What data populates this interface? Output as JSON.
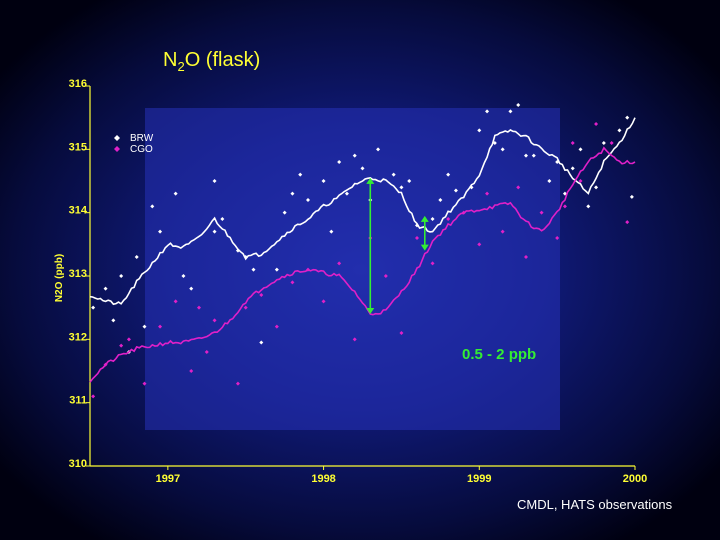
{
  "chart_data": {
    "type": "scatter",
    "title_main": "N",
    "title_sub": "2",
    "title_rest": "O (flask)",
    "ylabel": "N2O (ppb)",
    "xlabel": "",
    "xlim": [
      1996.5,
      2000.0
    ],
    "ylim": [
      310,
      316
    ],
    "xticks": [
      1997,
      1998,
      1999,
      2000
    ],
    "xtick_labels": [
      "1997",
      "1998",
      "1999",
      "2000"
    ],
    "yticks": [
      310,
      311,
      312,
      313,
      314,
      315,
      316
    ],
    "ytick_labels": [
      "310",
      "311",
      "312",
      "313",
      "314",
      "315",
      "316"
    ],
    "grid": false,
    "legend_position": "top-left",
    "annotation": "0.5 - 2 ppb",
    "source_note": "CMDL, HATS observations",
    "colors": {
      "background": "#101a78",
      "axis": "#ffff33",
      "BRW": "#ffffff",
      "CGO": "#e020c8",
      "annotation": "#33ee33"
    },
    "series": [
      {
        "name": "BRW",
        "smooth": {
          "x": [
            1996.5,
            1996.6,
            1996.7,
            1996.8,
            1996.9,
            1997.0,
            1997.1,
            1997.2,
            1997.3,
            1997.4,
            1997.5,
            1997.6,
            1997.7,
            1997.8,
            1997.9,
            1998.0,
            1998.1,
            1998.2,
            1998.3,
            1998.4,
            1998.5,
            1998.6,
            1998.7,
            1998.8,
            1998.9,
            1999.0,
            1999.1,
            1999.2,
            1999.3,
            1999.4,
            1999.5,
            1999.6,
            1999.7,
            1999.8,
            1999.9,
            2000.0
          ],
          "y": [
            312.7,
            312.6,
            312.55,
            312.9,
            313.2,
            313.5,
            313.45,
            313.6,
            313.9,
            313.6,
            313.3,
            313.35,
            313.55,
            313.75,
            313.9,
            314.1,
            314.25,
            314.45,
            314.55,
            314.5,
            314.3,
            313.8,
            313.7,
            314.0,
            314.25,
            314.6,
            315.2,
            315.3,
            315.2,
            315.0,
            314.85,
            314.55,
            314.3,
            314.8,
            315.1,
            315.5
          ]
        },
        "points": {
          "x": [
            1996.52,
            1996.6,
            1996.65,
            1996.7,
            1996.75,
            1996.8,
            1996.85,
            1996.9,
            1996.95,
            1997.05,
            1997.1,
            1997.15,
            1997.3,
            1997.3,
            1997.35,
            1997.45,
            1997.5,
            1997.55,
            1997.6,
            1997.7,
            1997.75,
            1997.8,
            1997.85,
            1997.9,
            1998.0,
            1998.05,
            1998.1,
            1998.15,
            1998.2,
            1998.25,
            1998.3,
            1998.35,
            1998.45,
            1998.5,
            1998.55,
            1998.6,
            1998.7,
            1998.75,
            1998.8,
            1998.85,
            1998.95,
            1999.0,
            1999.05,
            1999.1,
            1999.15,
            1999.2,
            1999.25,
            1999.3,
            1999.35,
            1999.45,
            1999.5,
            1999.55,
            1999.6,
            1999.65,
            1999.7,
            1999.75,
            1999.8,
            1999.9,
            1999.95,
            1999.98
          ],
          "y": [
            312.5,
            312.8,
            312.3,
            313.0,
            311.8,
            313.3,
            312.2,
            314.1,
            313.7,
            314.3,
            313.0,
            312.8,
            313.7,
            314.5,
            313.9,
            313.4,
            313.3,
            313.1,
            311.95,
            313.1,
            314.0,
            314.3,
            314.6,
            314.2,
            314.5,
            313.7,
            314.8,
            314.3,
            314.9,
            314.7,
            314.2,
            315.0,
            314.6,
            314.4,
            314.5,
            313.8,
            313.9,
            314.2,
            314.6,
            314.35,
            314.4,
            315.3,
            315.6,
            315.1,
            315.0,
            315.6,
            315.7,
            314.9,
            314.9,
            314.5,
            314.8,
            314.3,
            314.7,
            315.0,
            314.1,
            314.4,
            315.1,
            315.3,
            315.5,
            314.25
          ]
        }
      },
      {
        "name": "CGO",
        "smooth": {
          "x": [
            1996.5,
            1996.6,
            1996.7,
            1996.8,
            1996.9,
            1997.0,
            1997.1,
            1997.2,
            1997.3,
            1997.4,
            1997.5,
            1997.6,
            1997.7,
            1997.8,
            1997.9,
            1998.0,
            1998.1,
            1998.2,
            1998.3,
            1998.4,
            1998.5,
            1998.6,
            1998.7,
            1998.8,
            1998.9,
            1999.0,
            1999.1,
            1999.2,
            1999.3,
            1999.4,
            1999.5,
            1999.6,
            1999.7,
            1999.8,
            1999.9,
            2000.0
          ],
          "y": [
            311.35,
            311.6,
            311.75,
            311.85,
            311.9,
            311.95,
            311.95,
            312.0,
            312.1,
            312.3,
            312.6,
            312.8,
            312.95,
            313.05,
            313.1,
            313.05,
            313.0,
            312.75,
            312.4,
            312.45,
            312.75,
            313.1,
            313.55,
            313.8,
            314.0,
            314.05,
            314.1,
            314.15,
            313.85,
            313.7,
            314.0,
            314.45,
            314.8,
            315.0,
            314.8,
            314.8
          ]
        },
        "points": {
          "x": [
            1996.52,
            1996.6,
            1996.7,
            1996.75,
            1996.85,
            1996.95,
            1997.05,
            1997.15,
            1997.2,
            1997.25,
            1997.3,
            1997.45,
            1997.5,
            1997.6,
            1997.7,
            1997.8,
            1997.9,
            1998.0,
            1998.1,
            1998.2,
            1998.3,
            1998.4,
            1998.5,
            1998.6,
            1998.7,
            1998.8,
            1998.9,
            1999.0,
            1999.05,
            1999.15,
            1999.25,
            1999.3,
            1999.4,
            1999.5,
            1999.55,
            1999.6,
            1999.65,
            1999.75,
            1999.85,
            1999.95
          ],
          "y": [
            311.1,
            311.6,
            311.9,
            312.0,
            311.3,
            312.2,
            312.6,
            311.5,
            312.5,
            311.8,
            312.3,
            311.3,
            312.5,
            312.7,
            312.2,
            312.9,
            313.1,
            312.6,
            313.2,
            312.0,
            313.6,
            313.0,
            312.1,
            313.6,
            313.2,
            313.9,
            314.0,
            313.5,
            314.3,
            313.7,
            314.4,
            313.3,
            314.0,
            313.6,
            314.1,
            315.1,
            314.5,
            315.4,
            315.1,
            313.85
          ]
        }
      }
    ]
  }
}
